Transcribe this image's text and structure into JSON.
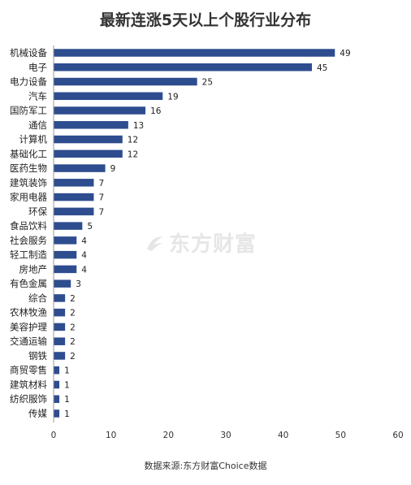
{
  "title": "最新连涨5天以上个股行业分布",
  "footer": "数据来源:东方财富Choice数据",
  "watermark": "东方财富",
  "colors": {
    "bar": "#2e4d8f",
    "axis": "#999999"
  },
  "chart_data": {
    "type": "bar",
    "orientation": "horizontal",
    "title": "最新连涨5天以上个股行业分布",
    "categories": [
      "机械设备",
      "电子",
      "电力设备",
      "汽车",
      "国防军工",
      "通信",
      "计算机",
      "基础化工",
      "医药生物",
      "建筑装饰",
      "家用电器",
      "环保",
      "食品饮料",
      "社会服务",
      "轻工制造",
      "房地产",
      "有色金属",
      "综合",
      "农林牧渔",
      "美容护理",
      "交通运输",
      "钢铁",
      "商贸零售",
      "建筑材料",
      "纺织服饰",
      "传媒"
    ],
    "values": [
      49,
      45,
      25,
      19,
      16,
      13,
      12,
      12,
      9,
      7,
      7,
      7,
      5,
      4,
      4,
      4,
      3,
      2,
      2,
      2,
      2,
      2,
      1,
      1,
      1,
      1
    ],
    "xlim": [
      0,
      60
    ],
    "xticks": [
      0,
      10,
      20,
      30,
      40,
      50,
      60
    ],
    "data_labels": true,
    "grid": false,
    "legend": "none"
  }
}
